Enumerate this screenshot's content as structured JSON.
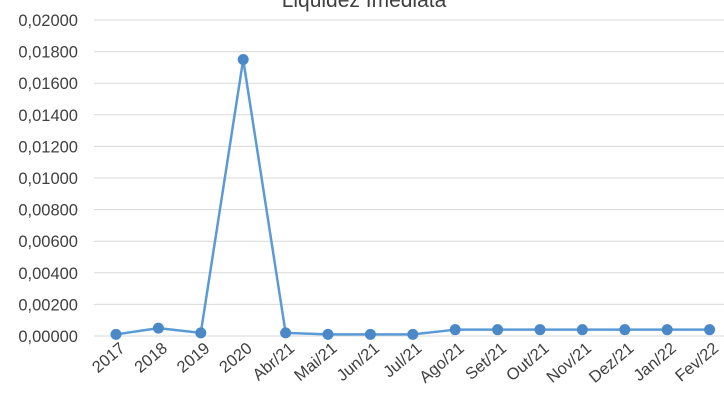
{
  "chart_data": {
    "type": "line",
    "title": "Liquidez Imediata",
    "xlabel": "",
    "ylabel": "",
    "ylim": [
      0,
      0.02
    ],
    "yticks": [
      "0,00000",
      "0,00200",
      "0,00400",
      "0,00600",
      "0,00800",
      "0,01000",
      "0,01200",
      "0,01400",
      "0,01600",
      "0,01800",
      "0,02000"
    ],
    "grid": true,
    "legend": "none",
    "categories": [
      "2017",
      "2018",
      "2019",
      "2020",
      "Abr/21",
      "Mai/21",
      "Jun/21",
      "Jul/21",
      "Ago/21",
      "Set/21",
      "Out/21",
      "Nov/21",
      "Dez/21",
      "Jan/22",
      "Fev/22"
    ],
    "series": [
      {
        "values": [
          0.0001,
          0.0005,
          0.0002,
          0.0175,
          0.0002,
          0.0001,
          0.0001,
          0.0001,
          0.0004,
          0.0004,
          0.0004,
          0.0004,
          0.0004,
          0.0004,
          0.0004
        ],
        "color": "#5b9bd5"
      }
    ]
  }
}
